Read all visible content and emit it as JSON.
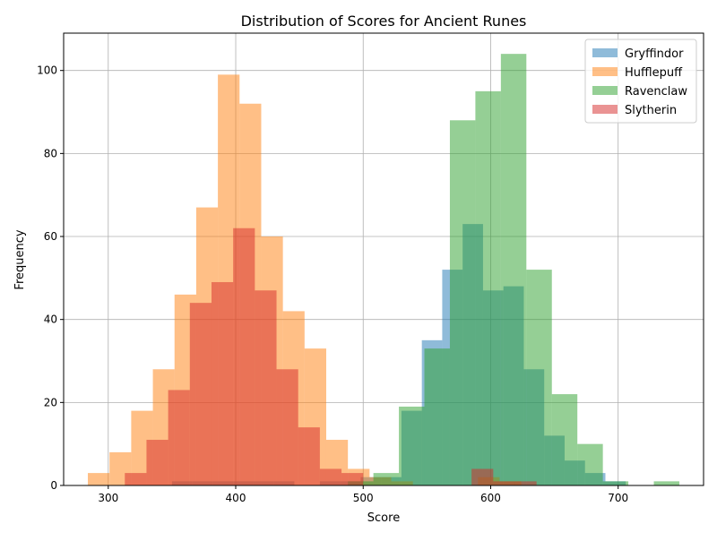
{
  "chart_data": {
    "type": "histogram",
    "title": "Distribution of Scores for Ancient Runes",
    "xlabel": "Score",
    "ylabel": "Frequency",
    "xlim": [
      265,
      767
    ],
    "ylim": [
      0,
      109
    ],
    "xticks": [
      300,
      400,
      500,
      600,
      700
    ],
    "yticks": [
      0,
      20,
      40,
      60,
      80,
      100
    ],
    "grid": true,
    "legend_position": "upper right",
    "bar_alpha": 0.5,
    "series": [
      {
        "name": "Gryffindor",
        "color": "#1f77b4",
        "bins": [
          {
            "x0": 350,
            "x1": 366,
            "count": 1
          },
          {
            "x0": 366,
            "x1": 382,
            "count": 1
          },
          {
            "x0": 382,
            "x1": 398,
            "count": 1
          },
          {
            "x0": 398,
            "x1": 414,
            "count": 1
          },
          {
            "x0": 414,
            "x1": 430,
            "count": 1
          },
          {
            "x0": 430,
            "x1": 446,
            "count": 1
          },
          {
            "x0": 466,
            "x1": 482,
            "count": 1
          },
          {
            "x0": 482,
            "x1": 498,
            "count": 1
          },
          {
            "x0": 498,
            "x1": 514,
            "count": 2
          },
          {
            "x0": 514,
            "x1": 530,
            "count": 2
          },
          {
            "x0": 530,
            "x1": 546,
            "count": 18
          },
          {
            "x0": 546,
            "x1": 562,
            "count": 35
          },
          {
            "x0": 562,
            "x1": 578,
            "count": 52
          },
          {
            "x0": 578,
            "x1": 594,
            "count": 63
          },
          {
            "x0": 594,
            "x1": 610,
            "count": 47
          },
          {
            "x0": 610,
            "x1": 626,
            "count": 48
          },
          {
            "x0": 626,
            "x1": 642,
            "count": 28
          },
          {
            "x0": 642,
            "x1": 658,
            "count": 12
          },
          {
            "x0": 658,
            "x1": 674,
            "count": 6
          },
          {
            "x0": 674,
            "x1": 690,
            "count": 3
          },
          {
            "x0": 690,
            "x1": 706,
            "count": 1
          }
        ]
      },
      {
        "name": "Hufflepuff",
        "color": "#ff7f0e",
        "bins": [
          {
            "x0": 284,
            "x1": 301,
            "count": 3
          },
          {
            "x0": 301,
            "x1": 318,
            "count": 8
          },
          {
            "x0": 318,
            "x1": 335,
            "count": 18
          },
          {
            "x0": 335,
            "x1": 352,
            "count": 28
          },
          {
            "x0": 352,
            "x1": 369,
            "count": 46
          },
          {
            "x0": 369,
            "x1": 386,
            "count": 67
          },
          {
            "x0": 386,
            "x1": 403,
            "count": 99
          },
          {
            "x0": 403,
            "x1": 420,
            "count": 92
          },
          {
            "x0": 420,
            "x1": 437,
            "count": 60
          },
          {
            "x0": 437,
            "x1": 454,
            "count": 42
          },
          {
            "x0": 454,
            "x1": 471,
            "count": 33
          },
          {
            "x0": 471,
            "x1": 488,
            "count": 11
          },
          {
            "x0": 488,
            "x1": 505,
            "count": 4
          },
          {
            "x0": 505,
            "x1": 522,
            "count": 2
          },
          {
            "x0": 522,
            "x1": 539,
            "count": 1
          },
          {
            "x0": 590,
            "x1": 607,
            "count": 2
          },
          {
            "x0": 607,
            "x1": 624,
            "count": 1
          }
        ]
      },
      {
        "name": "Ravenclaw",
        "color": "#2ca02c",
        "bins": [
          {
            "x0": 488,
            "x1": 508,
            "count": 1
          },
          {
            "x0": 508,
            "x1": 528,
            "count": 3
          },
          {
            "x0": 528,
            "x1": 548,
            "count": 19
          },
          {
            "x0": 548,
            "x1": 568,
            "count": 33
          },
          {
            "x0": 568,
            "x1": 588,
            "count": 88
          },
          {
            "x0": 588,
            "x1": 608,
            "count": 95
          },
          {
            "x0": 608,
            "x1": 628,
            "count": 104
          },
          {
            "x0": 628,
            "x1": 648,
            "count": 52
          },
          {
            "x0": 648,
            "x1": 668,
            "count": 22
          },
          {
            "x0": 668,
            "x1": 688,
            "count": 10
          },
          {
            "x0": 688,
            "x1": 708,
            "count": 1
          },
          {
            "x0": 728,
            "x1": 748,
            "count": 1
          }
        ]
      },
      {
        "name": "Slytherin",
        "color": "#d62728",
        "bins": [
          {
            "x0": 313,
            "x1": 330,
            "count": 3
          },
          {
            "x0": 330,
            "x1": 347,
            "count": 11
          },
          {
            "x0": 347,
            "x1": 364,
            "count": 23
          },
          {
            "x0": 364,
            "x1": 381,
            "count": 44
          },
          {
            "x0": 381,
            "x1": 398,
            "count": 49
          },
          {
            "x0": 398,
            "x1": 415,
            "count": 62
          },
          {
            "x0": 415,
            "x1": 432,
            "count": 47
          },
          {
            "x0": 432,
            "x1": 449,
            "count": 28
          },
          {
            "x0": 449,
            "x1": 466,
            "count": 14
          },
          {
            "x0": 466,
            "x1": 483,
            "count": 4
          },
          {
            "x0": 483,
            "x1": 500,
            "count": 3
          },
          {
            "x0": 585,
            "x1": 602,
            "count": 4
          },
          {
            "x0": 602,
            "x1": 619,
            "count": 1
          },
          {
            "x0": 619,
            "x1": 636,
            "count": 1
          }
        ]
      }
    ]
  }
}
